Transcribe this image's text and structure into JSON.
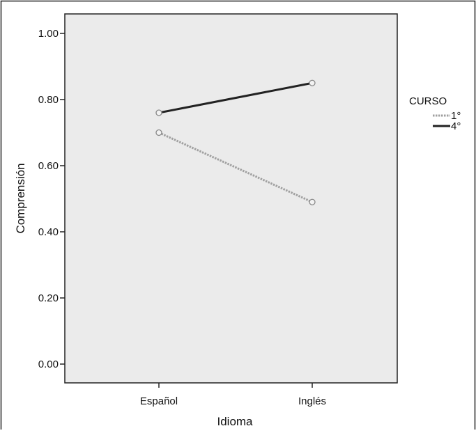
{
  "chart_data": {
    "type": "line",
    "title": "",
    "xlabel": "Idioma",
    "ylabel": "Comprensión",
    "categories": [
      "Español",
      "Inglés"
    ],
    "ylim": [
      0,
      1.05
    ],
    "yticks": [
      "0.00",
      "0.20",
      "0.40",
      "0.60",
      "0.80",
      "1.00"
    ],
    "grid": false,
    "legend": {
      "title": "CURSO",
      "placement": "right",
      "entries": [
        "1°",
        "4°"
      ]
    },
    "series": [
      {
        "name": "1°",
        "values": [
          0.7,
          0.49
        ],
        "color": "#a0a0a0",
        "style": "dotted"
      },
      {
        "name": "4°",
        "values": [
          0.76,
          0.85
        ],
        "color": "#222222",
        "style": "solid"
      }
    ]
  },
  "colors": {
    "plot_background": "#ebebeb",
    "frame": "#222222"
  }
}
